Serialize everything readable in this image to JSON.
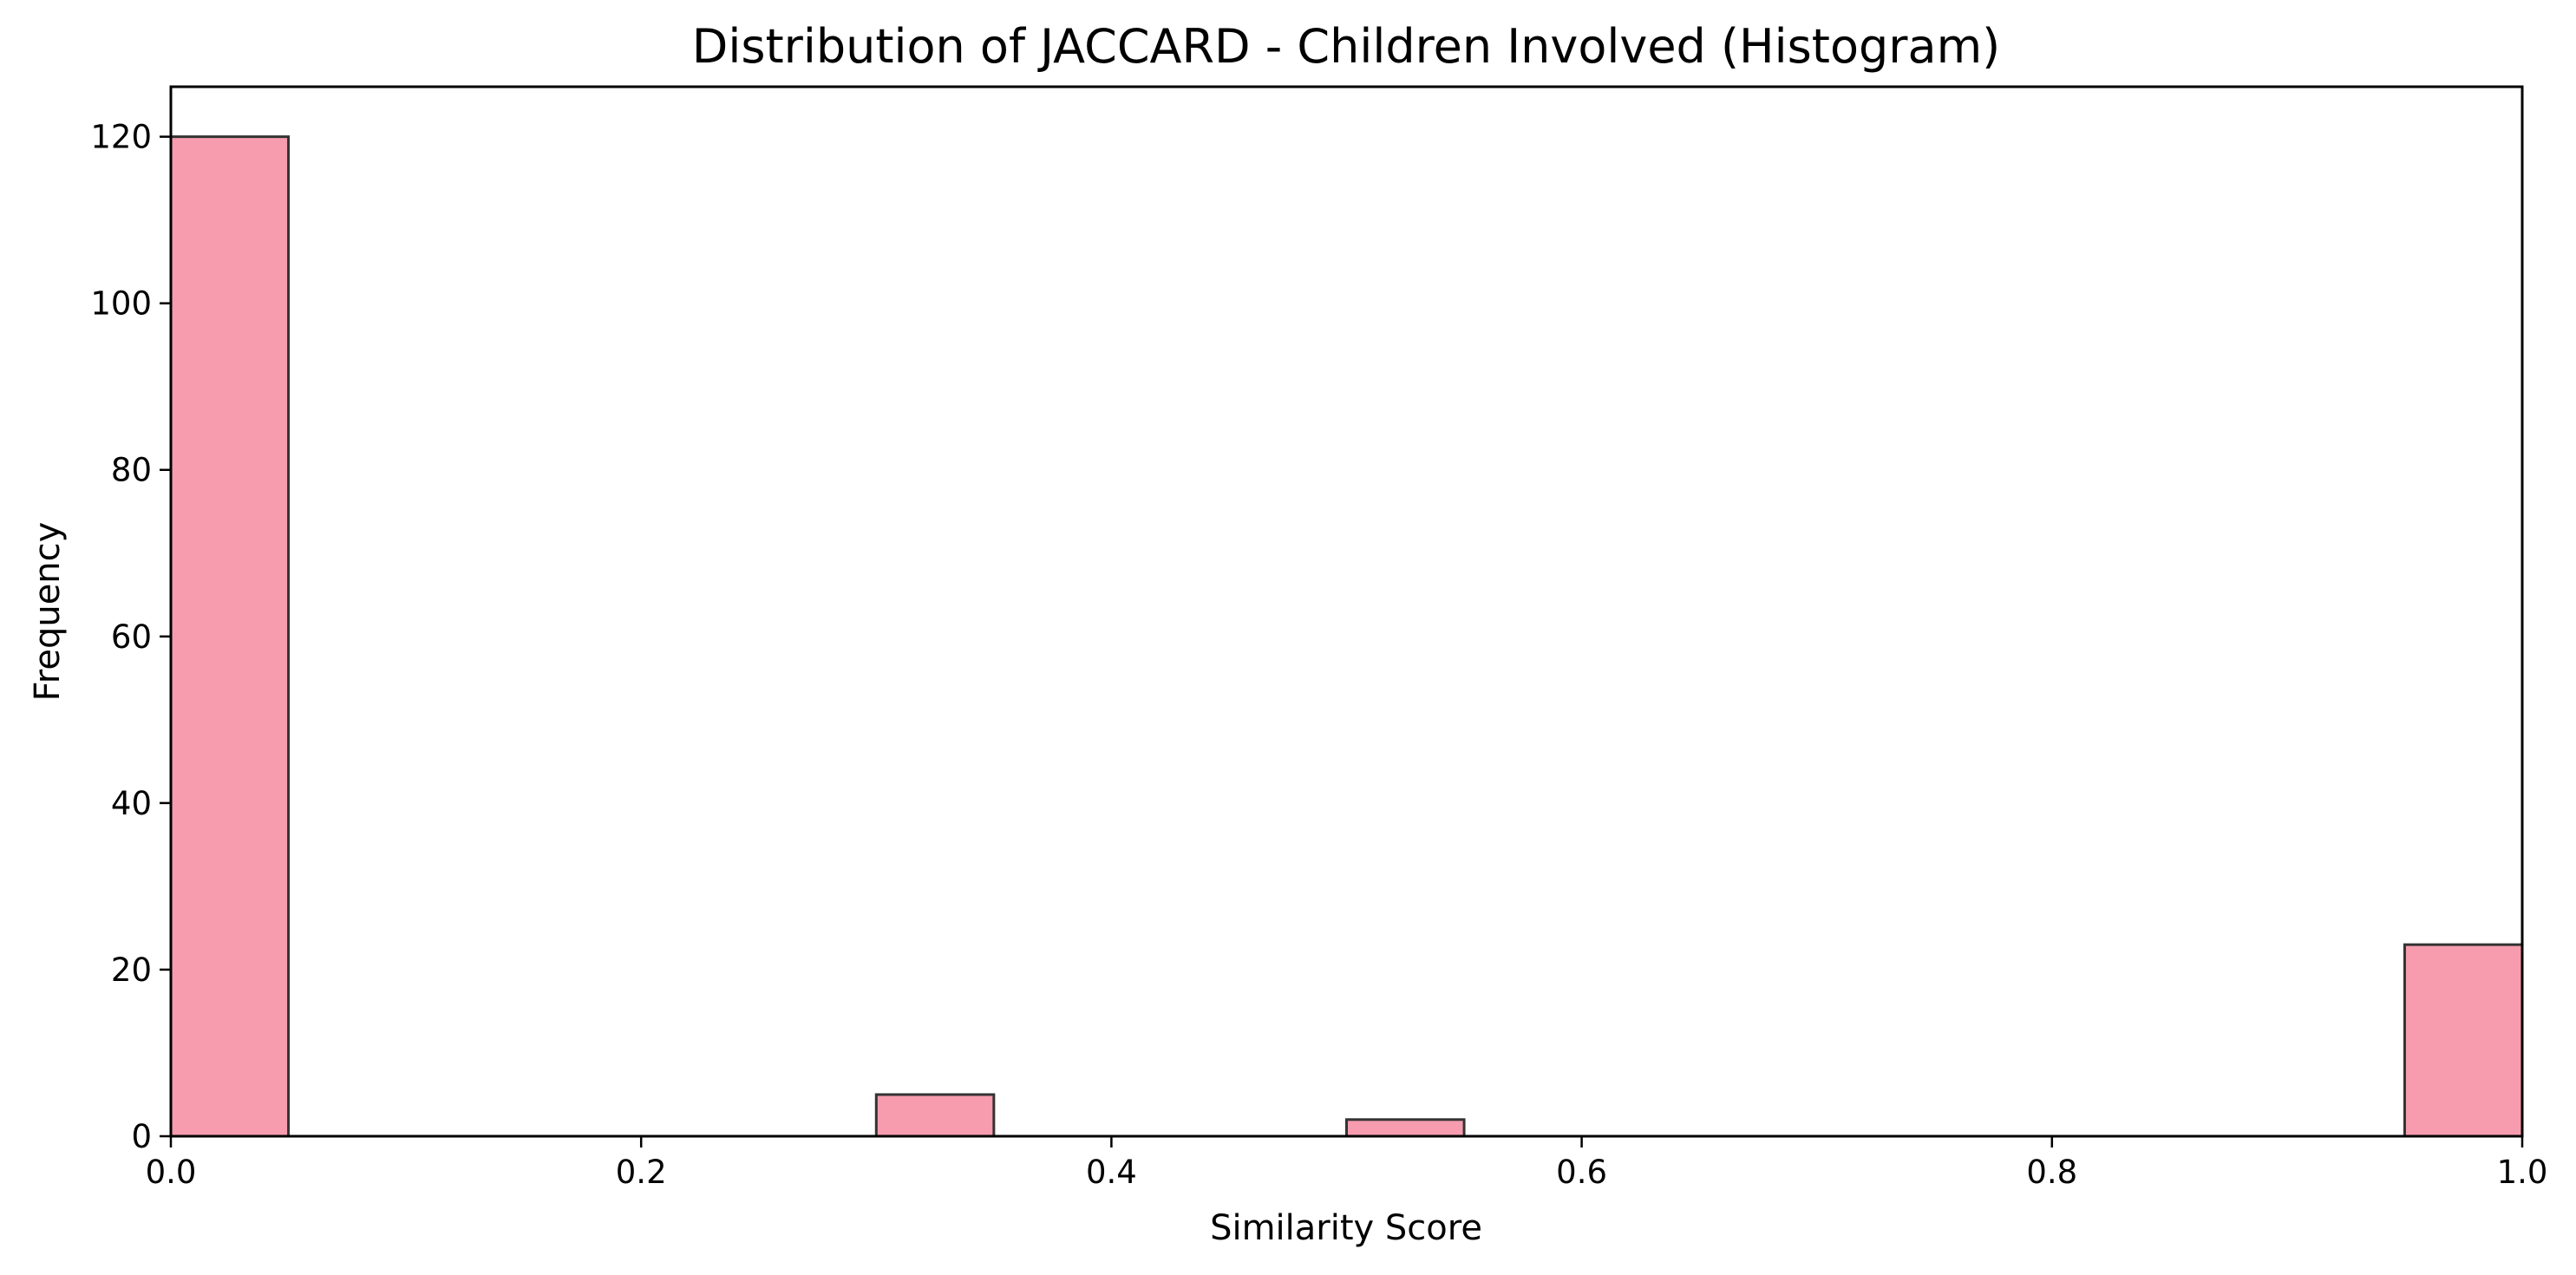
{
  "chart_data": {
    "type": "bar",
    "title": "Distribution of JACCARD - Children Involved (Histogram)",
    "xlabel": "Similarity Score",
    "ylabel": "Frequency",
    "xlim": [
      0.0,
      1.0
    ],
    "ylim": [
      0,
      126
    ],
    "grid": false,
    "bin_width": 0.05,
    "bar_fill": "#f48ba0",
    "bar_opacity": 0.85,
    "bar_edge": "#333333",
    "bins": [
      {
        "x": 0.0,
        "value": 120
      },
      {
        "x": 0.3,
        "value": 5
      },
      {
        "x": 0.5,
        "value": 2
      },
      {
        "x": 0.95,
        "value": 23
      }
    ],
    "xticks": [
      {
        "value": 0.0,
        "label": "0.0"
      },
      {
        "value": 0.2,
        "label": "0.2"
      },
      {
        "value": 0.4,
        "label": "0.4"
      },
      {
        "value": 0.6,
        "label": "0.6"
      },
      {
        "value": 0.8,
        "label": "0.8"
      },
      {
        "value": 1.0,
        "label": "1.0"
      }
    ],
    "yticks": [
      {
        "value": 0,
        "label": "0"
      },
      {
        "value": 20,
        "label": "20"
      },
      {
        "value": 40,
        "label": "40"
      },
      {
        "value": 60,
        "label": "60"
      },
      {
        "value": 80,
        "label": "80"
      },
      {
        "value": 100,
        "label": "100"
      },
      {
        "value": 120,
        "label": "120"
      }
    ]
  }
}
